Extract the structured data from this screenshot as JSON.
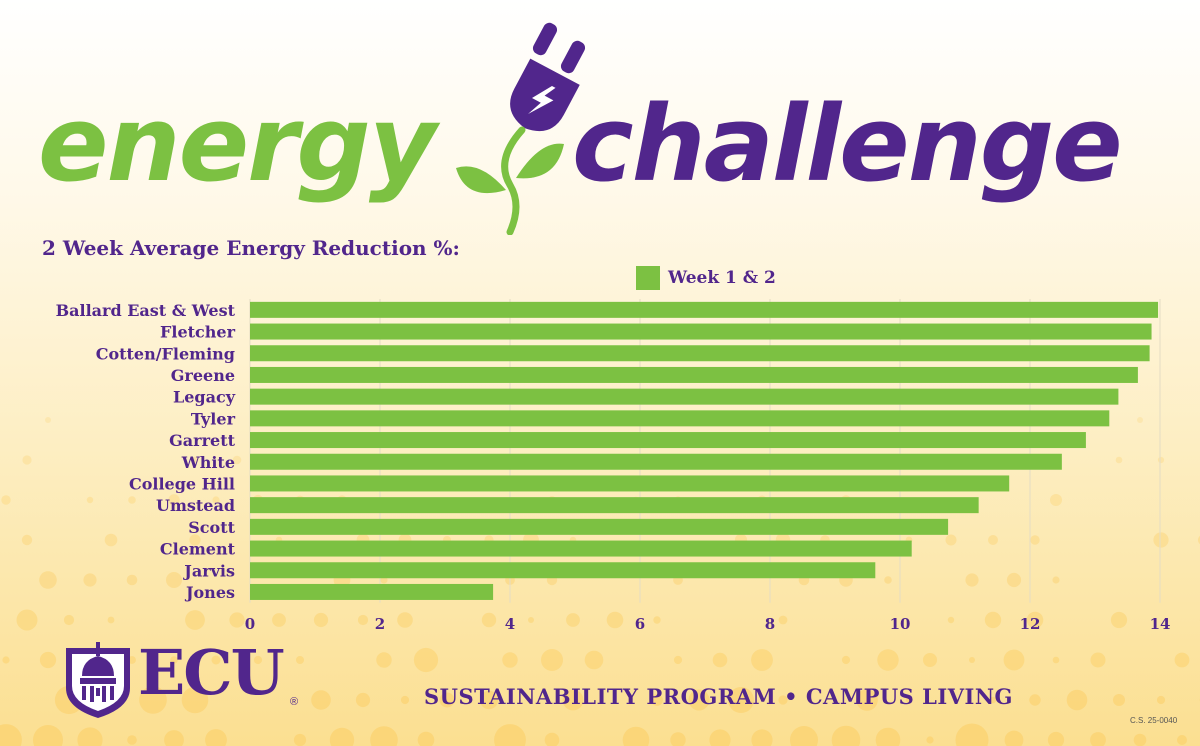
{
  "header": {
    "word_energy": "energy",
    "word_challenge": "challenge"
  },
  "subtitle": "2 Week Average Energy Reduction %:",
  "colors": {
    "green": "#7cc142",
    "purple": "#51268c",
    "grid": "#e4dcc4"
  },
  "icons": [
    "plug-icon",
    "leaf-icon",
    "ecu-cupola-shield-icon"
  ],
  "chart_data": {
    "type": "bar",
    "orientation": "horizontal",
    "categories": [
      "Ballard East & West",
      "Fletcher",
      "Cotten/Fleming",
      "Greene",
      "Legacy",
      "Tyler",
      "Garrett",
      "White",
      "College Hill",
      "Umstead",
      "Scott",
      "Clement",
      "Jarvis",
      "Jones"
    ],
    "series": [
      {
        "name": "Week 1 & 2",
        "values": [
          13.97,
          13.87,
          13.84,
          13.66,
          13.36,
          13.22,
          12.86,
          12.49,
          11.68,
          11.21,
          10.74,
          10.18,
          9.62,
          3.74
        ]
      }
    ],
    "xlim": [
      0,
      14
    ],
    "xticks": [
      "0",
      "2",
      "4",
      "6",
      "8",
      "10",
      "12",
      "14"
    ],
    "grid": "vertical",
    "legend_position": "top-center"
  },
  "footer": {
    "logo_text": "ECU",
    "registered": "®",
    "tagline": "SUSTAINABILITY PROGRAM • CAMPUS LIVING",
    "code": "C.S. 25-0040"
  }
}
